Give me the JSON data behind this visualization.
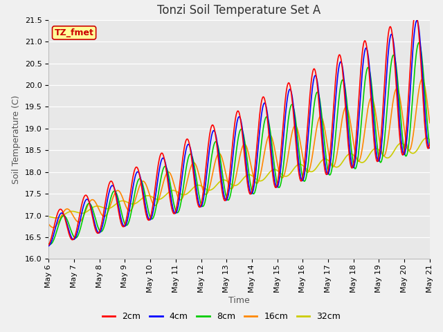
{
  "title": "Tonzi Soil Temperature Set A",
  "xlabel": "Time",
  "ylabel": "Soil Temperature (C)",
  "annotation_text": "TZ_fmet",
  "annotation_color": "#cc0000",
  "annotation_bg": "#ffff99",
  "annotation_border": "#cc0000",
  "ylim": [
    16.0,
    21.5
  ],
  "fig_bg": "#f0f0f0",
  "plot_bg": "#e8e8e8",
  "legend_entries": [
    "2cm",
    "4cm",
    "8cm",
    "16cm",
    "32cm"
  ],
  "line_colors": [
    "#ff0000",
    "#0000ff",
    "#00cc00",
    "#ff8800",
    "#cccc00"
  ],
  "line_width": 1.2,
  "start_day": 6,
  "end_day": 21,
  "n_points": 720,
  "title_fontsize": 12,
  "label_fontsize": 9,
  "tick_fontsize": 8
}
